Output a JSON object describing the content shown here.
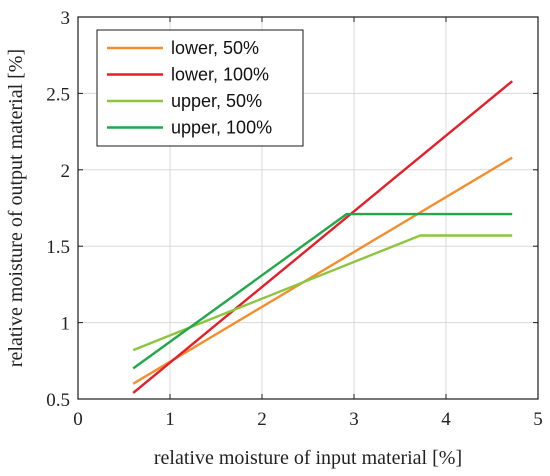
{
  "chart_data": {
    "type": "line",
    "title": "",
    "xlabel": "relative moisture of input material [%]",
    "ylabel": "relative moisture of output material [%]",
    "xlim": [
      0,
      5
    ],
    "ylim": [
      0.5,
      3
    ],
    "xticks": [
      0,
      1,
      2,
      3,
      4,
      5
    ],
    "xtick_labels": [
      "0",
      "1",
      "2",
      "3",
      "4",
      "5"
    ],
    "yticks": [
      0.5,
      1,
      1.5,
      2,
      2.5,
      3
    ],
    "ytick_labels": [
      "0.5",
      "1",
      "1.5",
      "2",
      "2.5",
      "3"
    ],
    "grid": true,
    "legend_position": "top-left",
    "series": [
      {
        "name": "lower, 50%",
        "color": "#f28e2b",
        "x": [
          0.6,
          4.72
        ],
        "y": [
          0.6,
          2.08
        ]
      },
      {
        "name": "lower, 100%",
        "color": "#e3202a",
        "x": [
          0.6,
          4.72
        ],
        "y": [
          0.54,
          2.58
        ]
      },
      {
        "name": "upper, 50%",
        "color": "#8cc63f",
        "x": [
          0.6,
          3.72,
          4.72
        ],
        "y": [
          0.82,
          1.57,
          1.57
        ]
      },
      {
        "name": "upper, 100%",
        "color": "#22a84a",
        "x": [
          0.6,
          2.92,
          4.72
        ],
        "y": [
          0.7,
          1.71,
          1.71
        ]
      }
    ]
  }
}
